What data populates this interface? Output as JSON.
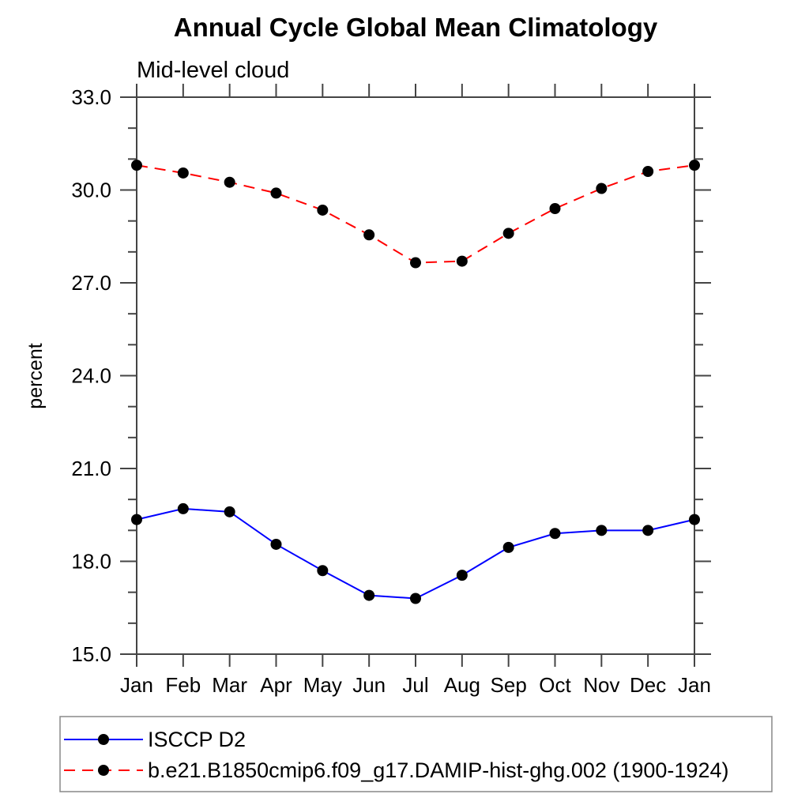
{
  "chart_data": {
    "type": "line",
    "title": "Annual Cycle Global Mean Climatology",
    "subtitle": "Mid-level cloud",
    "ylabel": "percent",
    "x_tick_labels": [
      "Jan",
      "Feb",
      "Mar",
      "Apr",
      "May",
      "Jun",
      "Jul",
      "Aug",
      "Sep",
      "Oct",
      "Nov",
      "Dec",
      "Jan"
    ],
    "ylim": [
      15.0,
      33.0
    ],
    "y_major_tick_step": 3.0,
    "y_minor_tick_step": 1.0,
    "y_major_tick_labels": [
      "15.0",
      "18.0",
      "21.0",
      "24.0",
      "27.0",
      "30.0",
      "33.0"
    ],
    "grid": false,
    "legend_position": "bottom-left-box",
    "frame_color": "#444444",
    "series": [
      {
        "name": "ISCCP D2",
        "color": "#0000ff",
        "line_style": "solid",
        "marker": "filled-circle",
        "marker_color": "#000000",
        "values": [
          19.35,
          19.7,
          19.6,
          18.55,
          17.7,
          16.9,
          16.8,
          17.55,
          18.45,
          18.9,
          19.0,
          19.0,
          19.35
        ]
      },
      {
        "name": "b.e21.B1850cmip6.f09_g17.DAMIP-hist-ghg.002 (1900-1924)",
        "color": "#ff0000",
        "line_style": "dashed",
        "marker": "filled-circle",
        "marker_color": "#000000",
        "values": [
          30.8,
          30.55,
          30.25,
          29.9,
          29.35,
          28.55,
          27.65,
          27.7,
          28.6,
          29.4,
          30.05,
          30.6,
          30.8
        ]
      }
    ]
  }
}
